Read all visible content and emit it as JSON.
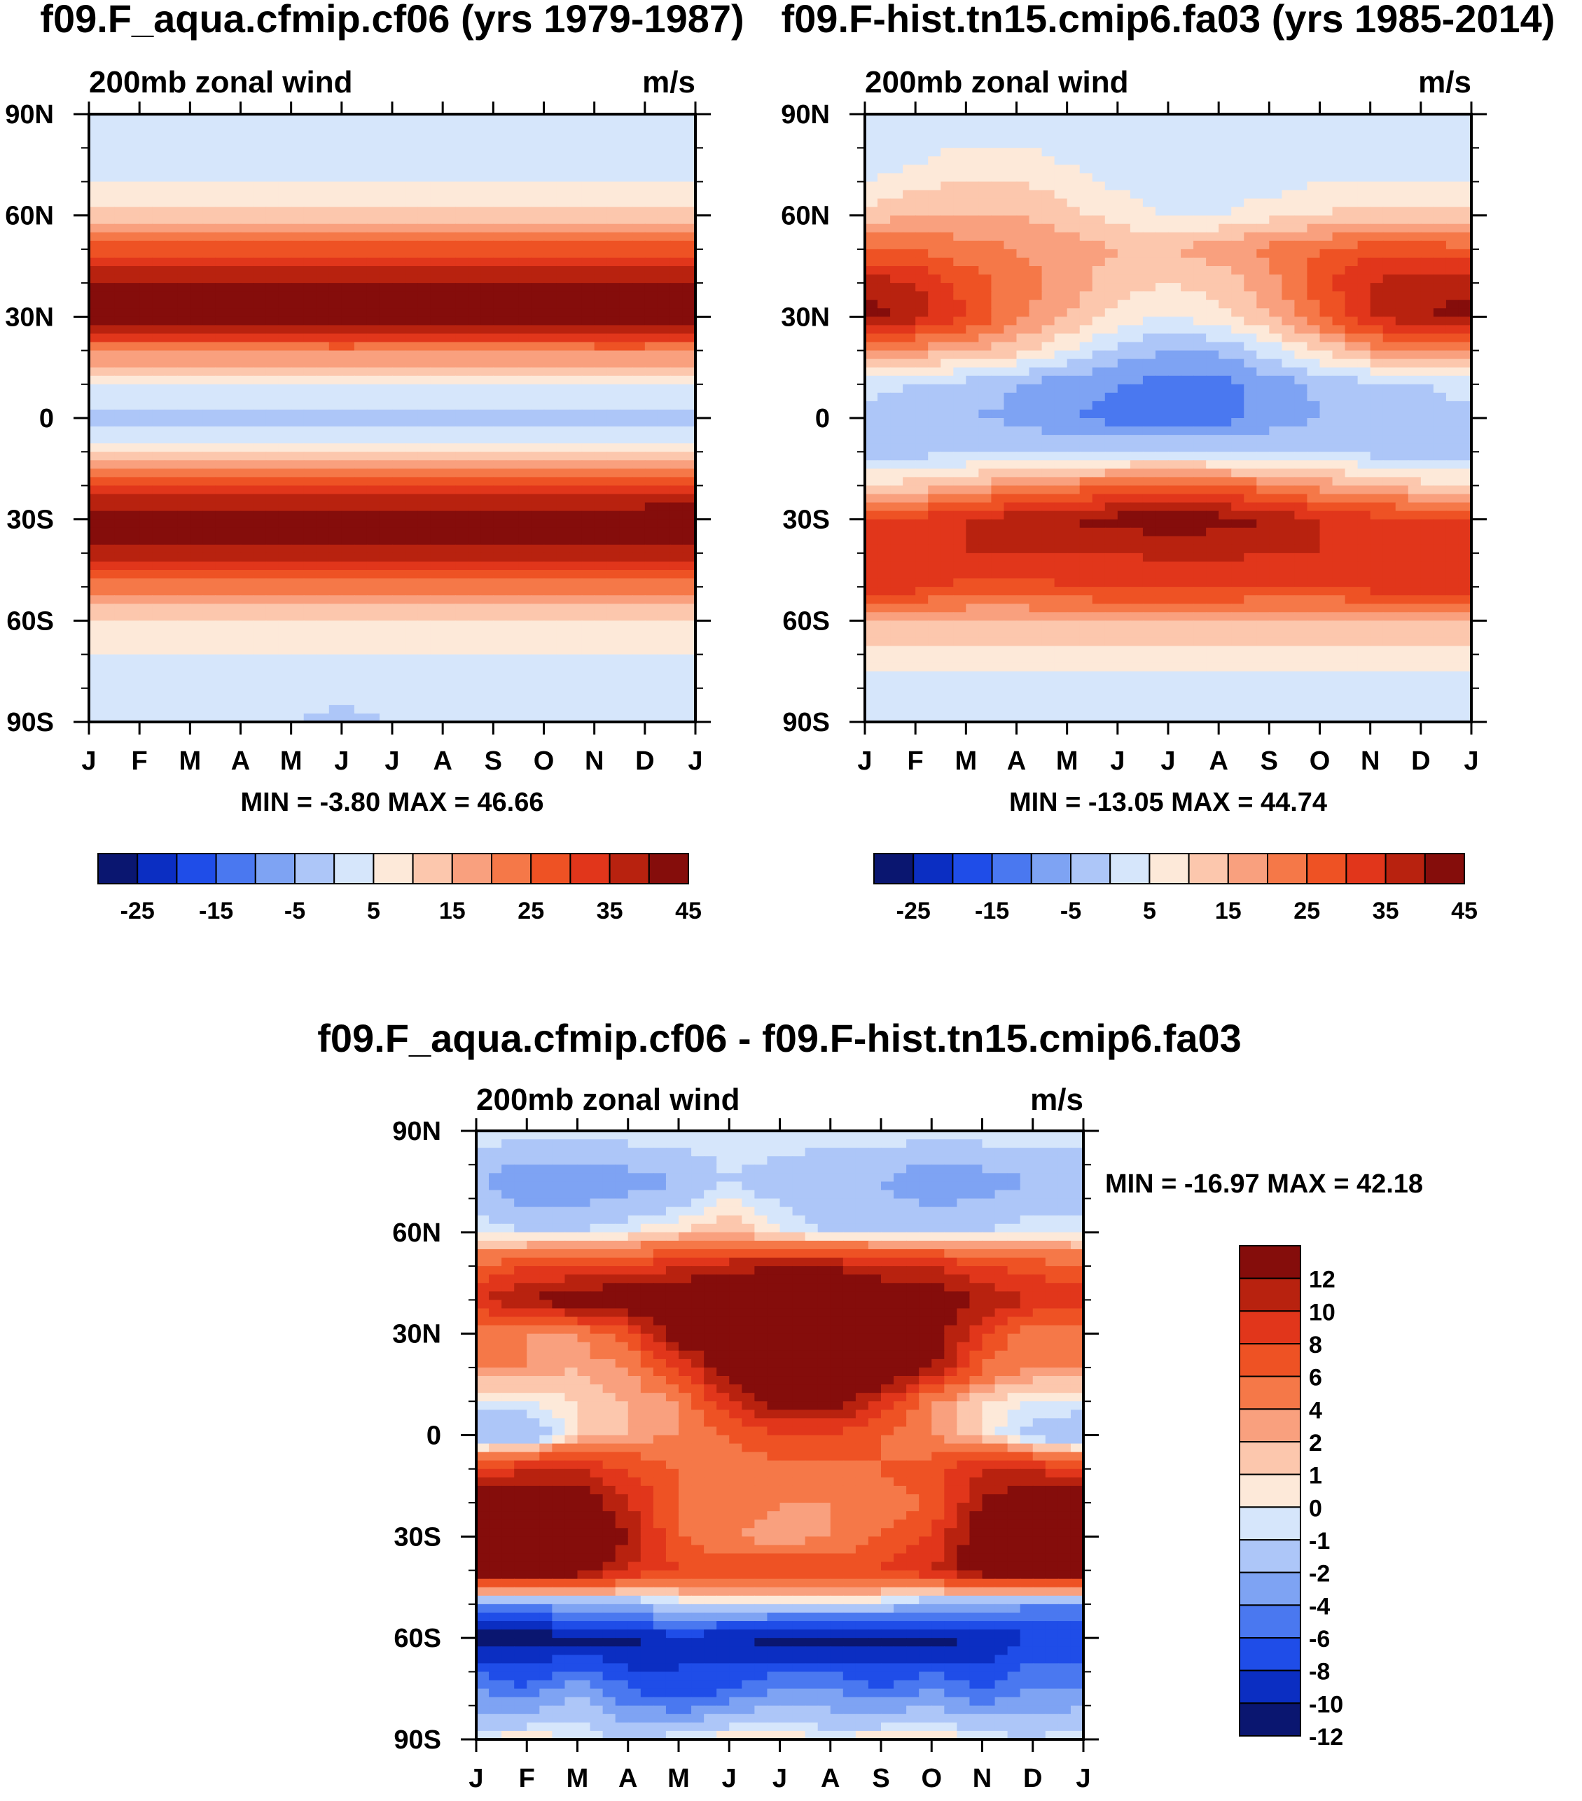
{
  "chart_data": [
    {
      "type": "heatmap",
      "id": "panel_a",
      "title": "f09.F_aqua.cfmip.cf06 (yrs 1979-1987)",
      "left_subtitle": "200mb zonal wind",
      "right_subtitle": "m/s",
      "xlabel": "",
      "ylabel": "",
      "x_ticks": [
        "J",
        "F",
        "M",
        "A",
        "M",
        "J",
        "J",
        "A",
        "S",
        "O",
        "N",
        "D",
        "J"
      ],
      "y_ticks": [
        "90N",
        "60N",
        "30N",
        "0",
        "30S",
        "60S",
        "90S"
      ],
      "y_tick_values": [
        90,
        60,
        30,
        0,
        -30,
        -60,
        -90
      ],
      "ylim": [
        -90,
        90
      ],
      "stats": "MIN =  -3.80 MAX =  46.66",
      "colorbar": {
        "orientation": "horizontal",
        "colors": [
          "#0a1670",
          "#0b2ec2",
          "#1f4de8",
          "#4a78f0",
          "#7ea3f3",
          "#adc6f8",
          "#d6e6fb",
          "#fde9d9",
          "#fcc7ad",
          "#f9a07e",
          "#f57848",
          "#ee5224",
          "#e1361b",
          "#b8220f",
          "#850d0b"
        ],
        "labels": [
          "-25",
          "-15",
          "-5",
          "5",
          "15",
          "25",
          "35",
          "45"
        ]
      },
      "min": -3.8,
      "max": 46.66,
      "description_grid": {
        "months": [
          "J",
          "F",
          "M",
          "A",
          "M",
          "J",
          "J",
          "A",
          "S",
          "O",
          "N",
          "D",
          "J"
        ],
        "lats": [
          90,
          75,
          60,
          50,
          40,
          30,
          20,
          10,
          0,
          -10,
          -20,
          -30,
          -40,
          -50,
          -60,
          -75,
          -90
        ],
        "values": [
          [
            0,
            0,
            0,
            0,
            0,
            0,
            0,
            0,
            0,
            0,
            0,
            0,
            0
          ],
          [
            2,
            2,
            2,
            2,
            2,
            2,
            2,
            2,
            2,
            2,
            2,
            2,
            2
          ],
          [
            12,
            12,
            12,
            12,
            12,
            12,
            12,
            12,
            12,
            12,
            12,
            12,
            12
          ],
          [
            28,
            28,
            28,
            28,
            28,
            28,
            28,
            28,
            28,
            28,
            28,
            28,
            28
          ],
          [
            40,
            40,
            40,
            40,
            40,
            40,
            40,
            40,
            40,
            40,
            40,
            40,
            40
          ],
          [
            45,
            45,
            45,
            45,
            45,
            46.5,
            45,
            45,
            45,
            45,
            46,
            46,
            45
          ],
          [
            22,
            22,
            22,
            22,
            22,
            22,
            22,
            22,
            22,
            22,
            22,
            22,
            22
          ],
          [
            5,
            5,
            5,
            5,
            5,
            5,
            5,
            5,
            5,
            5,
            5,
            5,
            5
          ],
          [
            -2,
            -2,
            -2,
            -2,
            -2,
            -2,
            -2,
            -2,
            -2,
            -2,
            -2,
            -2,
            -2
          ],
          [
            8,
            8,
            8,
            8,
            8,
            8,
            8,
            8,
            8,
            8,
            8,
            8,
            8
          ],
          [
            30,
            30,
            30,
            30,
            30,
            30,
            30,
            30,
            30,
            30,
            30,
            30,
            30
          ],
          [
            46,
            45,
            45,
            45,
            45,
            45,
            45,
            46,
            45,
            45,
            45,
            46,
            46
          ],
          [
            38,
            38,
            38,
            38,
            38,
            38,
            38,
            38,
            38,
            38,
            38,
            38,
            38
          ],
          [
            22,
            22,
            22,
            22,
            22,
            22,
            22,
            22,
            22,
            22,
            22,
            22,
            22
          ],
          [
            10,
            10,
            10,
            10,
            10,
            10,
            10,
            10,
            10,
            10,
            10,
            10,
            10
          ],
          [
            2,
            2,
            2,
            2,
            2,
            2,
            2,
            2,
            2,
            2,
            2,
            2,
            2
          ],
          [
            0,
            0,
            0,
            0,
            0,
            -1,
            0,
            0,
            0,
            0,
            0,
            0,
            0
          ]
        ]
      }
    },
    {
      "type": "heatmap",
      "id": "panel_b",
      "title": "f09.F-hist.tn15.cmip6.fa03 (yrs 1985-2014)",
      "left_subtitle": "200mb zonal wind",
      "right_subtitle": "m/s",
      "xlabel": "",
      "ylabel": "",
      "x_ticks": [
        "J",
        "F",
        "M",
        "A",
        "M",
        "J",
        "J",
        "A",
        "S",
        "O",
        "N",
        "D",
        "J"
      ],
      "y_ticks": [
        "90N",
        "60N",
        "30N",
        "0",
        "30S",
        "60S",
        "90S"
      ],
      "y_tick_values": [
        90,
        60,
        30,
        0,
        -30,
        -60,
        -90
      ],
      "ylim": [
        -90,
        90
      ],
      "stats": "MIN = -13.05 MAX =  44.74",
      "colorbar": {
        "orientation": "horizontal",
        "colors": [
          "#0a1670",
          "#0b2ec2",
          "#1f4de8",
          "#4a78f0",
          "#7ea3f3",
          "#adc6f8",
          "#d6e6fb",
          "#fde9d9",
          "#fcc7ad",
          "#f9a07e",
          "#f57848",
          "#ee5224",
          "#e1361b",
          "#b8220f",
          "#850d0b"
        ],
        "labels": [
          "-25",
          "-15",
          "-5",
          "5",
          "15",
          "25",
          "35",
          "45"
        ]
      },
      "min": -13.05,
      "max": 44.74,
      "description_grid": {
        "months": [
          "J",
          "F",
          "M",
          "A",
          "M",
          "J",
          "J",
          "A",
          "S",
          "O",
          "N",
          "D",
          "J"
        ],
        "lats": [
          90,
          75,
          60,
          50,
          40,
          30,
          20,
          10,
          0,
          -10,
          -20,
          -30,
          -40,
          -50,
          -60,
          -75,
          -90
        ],
        "values": [
          [
            0,
            0,
            0,
            0,
            0,
            0,
            0,
            0,
            0,
            0,
            0,
            0,
            0
          ],
          [
            2,
            5,
            8,
            8,
            5,
            2,
            0,
            0,
            0,
            2,
            2,
            2,
            2
          ],
          [
            12,
            15,
            15,
            15,
            12,
            8,
            5,
            5,
            8,
            10,
            12,
            12,
            12
          ],
          [
            25,
            25,
            22,
            20,
            18,
            15,
            15,
            18,
            22,
            25,
            28,
            28,
            25
          ],
          [
            38,
            35,
            28,
            22,
            18,
            12,
            10,
            12,
            18,
            28,
            35,
            38,
            38
          ],
          [
            42,
            38,
            30,
            22,
            15,
            8,
            4,
            8,
            15,
            25,
            35,
            40,
            42
          ],
          [
            20,
            18,
            15,
            12,
            5,
            -2,
            -5,
            -4,
            2,
            10,
            18,
            20,
            20
          ],
          [
            2,
            0,
            -2,
            -5,
            -8,
            -10,
            -12,
            -12,
            -8,
            -4,
            -2,
            0,
            2
          ],
          [
            -2,
            -3,
            -5,
            -6,
            -10,
            -12,
            -13,
            -12,
            -8,
            -5,
            -3,
            -2,
            -2
          ],
          [
            -3,
            -2,
            -1,
            0,
            0,
            0,
            2,
            0,
            0,
            -1,
            -2,
            -3,
            -3
          ],
          [
            10,
            12,
            15,
            20,
            22,
            25,
            28,
            25,
            22,
            18,
            15,
            12,
            10
          ],
          [
            30,
            32,
            35,
            38,
            40,
            42,
            44,
            42,
            40,
            35,
            32,
            32,
            30
          ],
          [
            35,
            35,
            35,
            35,
            35,
            35,
            36,
            36,
            35,
            35,
            35,
            35,
            35
          ],
          [
            34,
            32,
            28,
            28,
            30,
            32,
            32,
            32,
            30,
            30,
            32,
            34,
            34
          ],
          [
            15,
            15,
            15,
            15,
            15,
            15,
            15,
            15,
            15,
            15,
            15,
            15,
            15
          ],
          [
            5,
            5,
            5,
            5,
            5,
            5,
            5,
            5,
            5,
            5,
            5,
            5,
            5
          ],
          [
            0,
            0,
            0,
            0,
            0,
            0,
            0,
            0,
            0,
            0,
            0,
            0,
            0
          ]
        ]
      }
    },
    {
      "type": "heatmap",
      "id": "panel_diff",
      "title": "f09.F_aqua.cfmip.cf06 - f09.F-hist.tn15.cmip6.fa03",
      "left_subtitle": "200mb zonal wind",
      "right_subtitle": "m/s",
      "xlabel": "",
      "ylabel": "",
      "x_ticks": [
        "J",
        "F",
        "M",
        "A",
        "M",
        "J",
        "J",
        "A",
        "S",
        "O",
        "N",
        "D",
        "J"
      ],
      "y_ticks": [
        "90N",
        "60N",
        "30N",
        "0",
        "30S",
        "60S",
        "90S"
      ],
      "y_tick_values": [
        90,
        60,
        30,
        0,
        -30,
        -60,
        -90
      ],
      "ylim": [
        -90,
        90
      ],
      "stats": "MIN = -16.97 MAX =  42.18",
      "colorbar": {
        "orientation": "vertical",
        "colors": [
          "#0a1670",
          "#0b2ec2",
          "#1f4de8",
          "#4a78f0",
          "#7ea3f3",
          "#adc6f8",
          "#d6e6fb",
          "#fde9d9",
          "#fcc7ad",
          "#f9a07e",
          "#f57848",
          "#ee5224",
          "#e1361b",
          "#b8220f",
          "#850d0b"
        ],
        "labels": [
          "12",
          "10",
          "8",
          "6",
          "4",
          "2",
          "1",
          "0",
          "-1",
          "-2",
          "-4",
          "-6",
          "-8",
          "-10",
          "-12"
        ]
      },
      "min": -16.97,
      "max": 42.18,
      "description_grid": {
        "months": [
          "J",
          "F",
          "M",
          "A",
          "M",
          "J",
          "J",
          "A",
          "S",
          "O",
          "N",
          "D",
          "J"
        ],
        "lats": [
          90,
          75,
          60,
          50,
          40,
          30,
          20,
          10,
          0,
          -10,
          -20,
          -30,
          -40,
          -50,
          -60,
          -75,
          -90
        ],
        "values": [
          [
            -1,
            -1,
            -1,
            -1,
            -1,
            -1,
            -1,
            -1,
            -1,
            -1,
            -1,
            -1,
            -1
          ],
          [
            -4,
            -6,
            -6,
            -5,
            -4,
            -2,
            -3,
            -4,
            -4,
            -6,
            -5,
            -4,
            -4
          ],
          [
            -1,
            -2,
            -2,
            -1,
            0,
            1,
            -1,
            -2,
            -2,
            -2,
            -2,
            -1,
            -1
          ],
          [
            4,
            6,
            6,
            6,
            8,
            9,
            10,
            10,
            8,
            8,
            6,
            5,
            4
          ],
          [
            8,
            10,
            12,
            13,
            13,
            13,
            13,
            13,
            13,
            12,
            10,
            8,
            8
          ],
          [
            2,
            2,
            2,
            5,
            12,
            13,
            13,
            13,
            13,
            12,
            6,
            2,
            2
          ],
          [
            2,
            2,
            1,
            2,
            6,
            12,
            13,
            13,
            13,
            10,
            4,
            2,
            2
          ],
          [
            -1,
            -1,
            0,
            1,
            2,
            8,
            11,
            11,
            8,
            2,
            0,
            -1,
            -1
          ],
          [
            -4,
            -4,
            0,
            1,
            2,
            4,
            6,
            6,
            4,
            2,
            0,
            -3,
            -4
          ],
          [
            6,
            8,
            8,
            6,
            4,
            3,
            3,
            3,
            4,
            5,
            8,
            8,
            6
          ],
          [
            13,
            13,
            12,
            8,
            4,
            3,
            2,
            2,
            3,
            4,
            10,
            13,
            13
          ],
          [
            13,
            13,
            13,
            10,
            4,
            2,
            1,
            2,
            4,
            6,
            12,
            13,
            13
          ],
          [
            13,
            13,
            12,
            8,
            6,
            6,
            6,
            6,
            6,
            8,
            12,
            13,
            13
          ],
          [
            -6,
            -6,
            -4,
            -4,
            -2,
            -2,
            -2,
            -2,
            -2,
            -4,
            -4,
            -6,
            -6
          ],
          [
            -13,
            -13,
            -13,
            -13,
            -10,
            -12,
            -13,
            -13,
            -13,
            -13,
            -12,
            -10,
            -10
          ],
          [
            -6,
            -8,
            -4,
            -8,
            -10,
            -8,
            -6,
            -6,
            -8,
            -6,
            -8,
            -6,
            -6
          ],
          [
            -1,
            0,
            -1,
            -2,
            -1,
            0,
            0,
            -1,
            0,
            0,
            -1,
            -2,
            -1
          ]
        ]
      }
    }
  ]
}
